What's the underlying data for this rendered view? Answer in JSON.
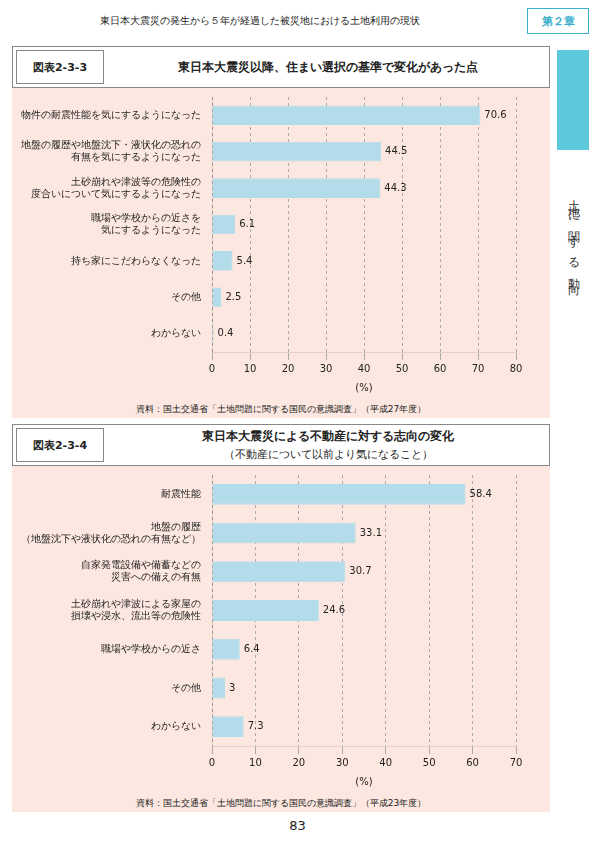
{
  "annotations": [
    "東日本大震災の発生から５年が経過した被災地における土地利用の現状",
    "第２章",
    "83",
    "土地に関する動向"
  ],
  "chart_data": [
    {
      "type": "bar",
      "orientation": "horizontal",
      "title": "東日本大震災以降、住まい選択の基準で変化があった点",
      "annotations": [
        "図表2-3-3",
        "資料：国土交通省「土地問題に関する国民の意識調査」（平成27年度）"
      ],
      "categories": [
        "物件の耐震性能を気にするようになった",
        "地盤の履歴や地盤沈下・液状化の恐れの\n有無を気にするようになった",
        "土砂崩れや津波等の危険性の\n度合いについて気にするようになった",
        "職場や学校からの近さを\n気にするようになった",
        "持ち家にこだわらなくなった",
        "その他",
        "わからない"
      ],
      "values": [
        70.6,
        44.5,
        44.3,
        6.1,
        5.4,
        2.5,
        0.4
      ],
      "color": "#b3dcea",
      "xlim": [
        0,
        80
      ],
      "xticks": [
        0,
        10,
        20,
        30,
        40,
        50,
        60,
        70,
        80
      ],
      "xlabel": "(%)",
      "grid": true,
      "data_labels": true
    },
    {
      "type": "bar",
      "orientation": "horizontal",
      "title": "東日本大震災による不動産に対する志向の変化",
      "subtitle": "（不動産について以前より気になること）",
      "annotations": [
        "図表2-3-4",
        "資料：国土交通省「土地問題に関する国民の意識調査」（平成23年度）"
      ],
      "categories": [
        "耐震性能",
        "地盤の履歴\n（地盤沈下や液状化の恐れの有無など）",
        "自家発電設備や備蓄などの\n災害への備えの有無",
        "土砂崩れや津波による家屋の\n損壊や浸水、流出等の危険性",
        "職場や学校からの近さ",
        "その他",
        "わからない"
      ],
      "values": [
        58.4,
        33.1,
        30.7,
        24.6,
        6.4,
        3.0,
        7.3
      ],
      "color": "#b3dcea",
      "xlim": [
        0,
        70
      ],
      "xticks": [
        0,
        10,
        20,
        30,
        40,
        50,
        60,
        70
      ],
      "xlabel": "(%)",
      "grid": true,
      "data_labels": true
    }
  ]
}
